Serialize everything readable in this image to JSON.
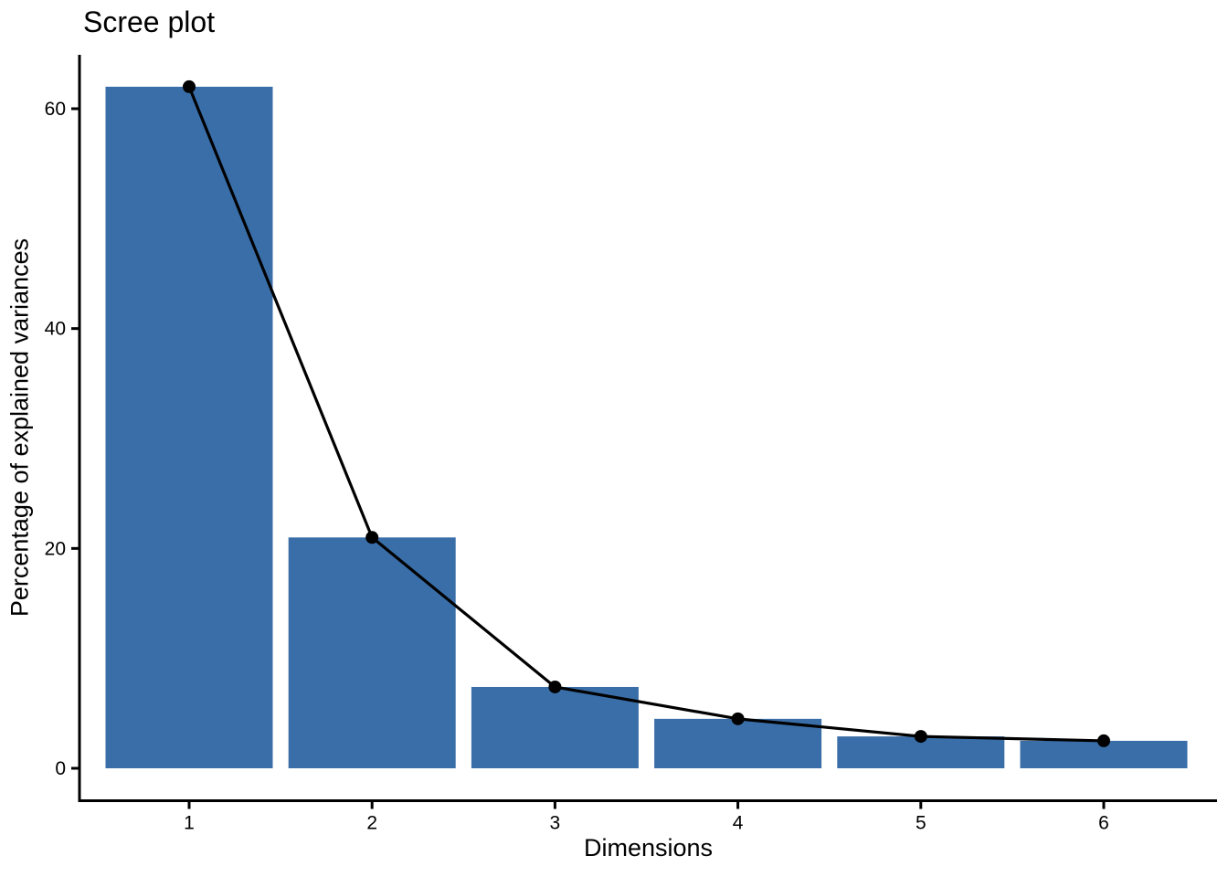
{
  "chart_data": {
    "type": "bar",
    "line_overlay": true,
    "title": "Scree plot",
    "xlabel": "Dimensions",
    "ylabel": "Percentage of explained variances",
    "categories": [
      "1",
      "2",
      "3",
      "4",
      "5",
      "6"
    ],
    "values": [
      62.0,
      21.0,
      7.4,
      4.5,
      2.9,
      2.5
    ],
    "series": [
      {
        "name": "explained-variance-bars",
        "values": [
          62.0,
          21.0,
          7.4,
          4.5,
          2.9,
          2.5
        ]
      },
      {
        "name": "explained-variance-line",
        "values": [
          62.0,
          21.0,
          7.4,
          4.5,
          2.9,
          2.5
        ]
      }
    ],
    "ylim": [
      0,
      65
    ],
    "yticks": [
      0,
      20,
      40,
      60
    ],
    "grid": false,
    "legend": "none",
    "colors": {
      "bar_fill": "#3A6EA8",
      "line": "#000000",
      "point": "#000000",
      "axis": "#000000",
      "text": "#000000"
    }
  }
}
